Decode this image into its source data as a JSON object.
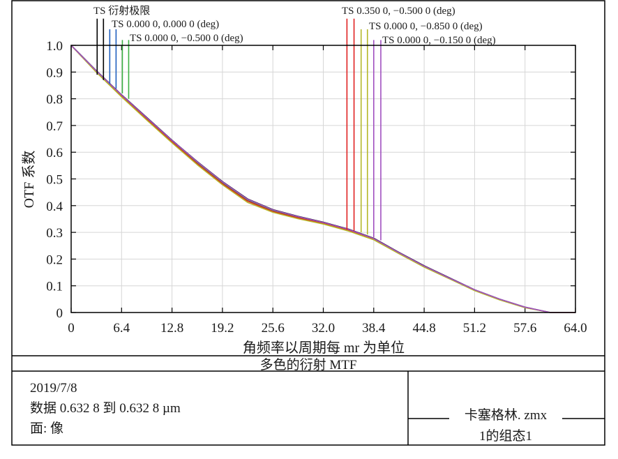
{
  "chart_data": {
    "type": "line",
    "title": "多色的衍射 MTF",
    "xlabel": "角频率以周期每 mr 为单位",
    "ylabel": "OTF 系数",
    "xlim": [
      0,
      64
    ],
    "ylim": [
      0,
      1
    ],
    "x_ticks": [
      0,
      6.4,
      12.8,
      19.2,
      25.6,
      32.0,
      38.4,
      44.8,
      51.2,
      57.6,
      64.0
    ],
    "x_tick_labels": [
      "0",
      "6.4",
      "12.8",
      "19.2",
      "25.6",
      "32.0",
      "38.4",
      "44.8",
      "51.2",
      "57.6",
      "64.0"
    ],
    "y_ticks": [
      0,
      0.1,
      0.2,
      0.3,
      0.4,
      0.5,
      0.6,
      0.7,
      0.8,
      0.9,
      1.0
    ],
    "y_tick_labels": [
      "0",
      "0.1",
      "0.2",
      "0.3",
      "0.4",
      "0.5",
      "0.6",
      "0.7",
      "0.8",
      "0.9",
      "1.0"
    ],
    "grid": true,
    "legend": [
      {
        "label": "TS 衍射极限",
        "color": "#000000"
      },
      {
        "label": "TS 0.000 0, 0.000 0 (deg)",
        "color": "#1f5fbf"
      },
      {
        "label": "TS 0.000 0, −0.500 0 (deg)",
        "color": "#3cb043"
      },
      {
        "label": "TS 0.350 0, −0.500 0 (deg)",
        "color": "#e02020"
      },
      {
        "label": "TS 0.000 0, −0.850 0 (deg)",
        "color": "#b5b82a"
      },
      {
        "label": "TS 0.000 0, −0.150 0 (deg)",
        "color": "#a050c0"
      }
    ],
    "series": [
      {
        "name": "TS 衍射极限",
        "color": "#000000",
        "x": [
          0,
          3.2,
          6.4,
          9.6,
          12.8,
          16,
          19.2,
          22.4,
          25.6,
          28.8,
          32,
          35.2,
          38.4,
          41.6,
          44.8,
          48,
          51.2,
          54.4,
          57.6,
          60.8,
          64
        ],
        "y": [
          1.0,
          0.905,
          0.815,
          0.73,
          0.645,
          0.565,
          0.49,
          0.425,
          0.385,
          0.36,
          0.338,
          0.312,
          0.278,
          0.225,
          0.175,
          0.13,
          0.085,
          0.05,
          0.02,
          0.0,
          0.0
        ]
      },
      {
        "name": "TS 0.000 0, 0.000 0 (deg)",
        "color": "#1f5fbf",
        "x": [
          0,
          3.2,
          6.4,
          9.6,
          12.8,
          16,
          19.2,
          22.4,
          25.6,
          28.8,
          32,
          35.2,
          38.4,
          41.6,
          44.8,
          48,
          51.2,
          54.4,
          57.6,
          60.8,
          64
        ],
        "y": [
          1.0,
          0.902,
          0.812,
          0.727,
          0.642,
          0.562,
          0.487,
          0.422,
          0.382,
          0.357,
          0.336,
          0.31,
          0.276,
          0.223,
          0.173,
          0.128,
          0.084,
          0.049,
          0.019,
          0.0,
          0.0
        ]
      },
      {
        "name": "TS 0.000 0, −0.500 0 (deg)",
        "color": "#3cb043",
        "x": [
          0,
          3.2,
          6.4,
          9.6,
          12.8,
          16,
          19.2,
          22.4,
          25.6,
          28.8,
          32,
          35.2,
          38.4,
          41.6,
          44.8,
          48,
          51.2,
          54.4,
          57.6,
          60.8,
          64
        ],
        "y": [
          1.0,
          0.9,
          0.81,
          0.724,
          0.64,
          0.559,
          0.484,
          0.419,
          0.38,
          0.355,
          0.334,
          0.308,
          0.274,
          0.222,
          0.172,
          0.127,
          0.083,
          0.048,
          0.019,
          0.0,
          0.0
        ]
      },
      {
        "name": "TS 0.350 0, −0.500 0 (deg)",
        "color": "#e02020",
        "x": [
          0,
          3.2,
          6.4,
          9.6,
          12.8,
          16,
          19.2,
          22.4,
          25.6,
          28.8,
          32,
          35.2,
          38.4,
          41.6,
          44.8,
          48,
          51.2,
          54.4,
          57.6,
          60.8,
          64
        ],
        "y": [
          1.0,
          0.9,
          0.809,
          0.723,
          0.638,
          0.557,
          0.482,
          0.417,
          0.378,
          0.354,
          0.333,
          0.307,
          0.273,
          0.221,
          0.171,
          0.127,
          0.083,
          0.048,
          0.019,
          0.0,
          0.0
        ]
      },
      {
        "name": "TS 0.000 0, −0.850 0 (deg)",
        "color": "#b5b82a",
        "x": [
          0,
          3.2,
          6.4,
          9.6,
          12.8,
          16,
          19.2,
          22.4,
          25.6,
          28.8,
          32,
          35.2,
          38.4,
          41.6,
          44.8,
          48,
          51.2,
          54.4,
          57.6,
          60.8,
          64
        ],
        "y": [
          1.0,
          0.899,
          0.807,
          0.72,
          0.635,
          0.553,
          0.478,
          0.412,
          0.375,
          0.351,
          0.331,
          0.305,
          0.272,
          0.22,
          0.17,
          0.126,
          0.082,
          0.047,
          0.018,
          0.0,
          0.0
        ]
      },
      {
        "name": "TS 0.000 0, −0.150 0 (deg)",
        "color": "#a050c0",
        "x": [
          0,
          3.2,
          6.4,
          9.6,
          12.8,
          16,
          19.2,
          22.4,
          25.6,
          28.8,
          32,
          35.2,
          38.4,
          41.6,
          44.8,
          48,
          51.2,
          54.4,
          57.6,
          60.8,
          64
        ],
        "y": [
          1.0,
          0.904,
          0.814,
          0.729,
          0.644,
          0.564,
          0.489,
          0.424,
          0.384,
          0.359,
          0.337,
          0.311,
          0.277,
          0.224,
          0.174,
          0.129,
          0.085,
          0.05,
          0.02,
          0.0,
          0.0
        ]
      }
    ],
    "markers": [
      {
        "x": 3.3,
        "y": 0.89,
        "top": 1.1,
        "color": "#000000"
      },
      {
        "x": 4.1,
        "y": 0.87,
        "top": 1.1,
        "color": "#000000"
      },
      {
        "x": 4.9,
        "y": 0.855,
        "top": 1.06,
        "color": "#1f5fbf"
      },
      {
        "x": 5.7,
        "y": 0.838,
        "top": 1.06,
        "color": "#1f5fbf"
      },
      {
        "x": 6.5,
        "y": 0.82,
        "top": 1.02,
        "color": "#3cb043"
      },
      {
        "x": 7.3,
        "y": 0.8,
        "top": 1.02,
        "color": "#3cb043"
      },
      {
        "x": 35.0,
        "y": 0.31,
        "top": 1.1,
        "color": "#e02020"
      },
      {
        "x": 35.9,
        "y": 0.306,
        "top": 1.1,
        "color": "#e02020"
      },
      {
        "x": 36.8,
        "y": 0.3,
        "top": 1.06,
        "color": "#b5b82a"
      },
      {
        "x": 37.6,
        "y": 0.292,
        "top": 1.06,
        "color": "#b5b82a"
      },
      {
        "x": 38.4,
        "y": 0.282,
        "top": 1.02,
        "color": "#a050c0"
      },
      {
        "x": 39.3,
        "y": 0.27,
        "top": 1.02,
        "color": "#a050c0"
      }
    ]
  },
  "info": {
    "date": "2019/7/8",
    "wavelength": "数据 0.632 8 到 0.632 8 µm",
    "surface": "面: 像",
    "file": "卡塞格林. zmx",
    "config": "1的组态1"
  }
}
